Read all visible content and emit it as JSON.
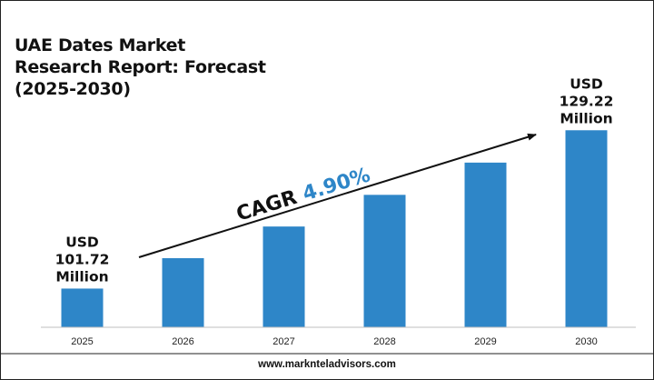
{
  "title": "UAE Dates Market Research Report: Forecast (2025-2030)",
  "footer": {
    "website": "www.marknteladvisors.com"
  },
  "colors": {
    "bar": "#2e86c8",
    "cagr_value": "#2e86c8",
    "text": "#111111"
  },
  "cagr": {
    "label": "CAGR",
    "value": "4.90%"
  },
  "chart_data": {
    "type": "bar",
    "categories": [
      "2025",
      "2026",
      "2027",
      "2028",
      "2029",
      "2030"
    ],
    "values": [
      101.72,
      107.0,
      112.5,
      118.0,
      123.6,
      129.22
    ],
    "ylim": [
      95,
      131
    ],
    "grid": false,
    "data_labels": [
      {
        "category": "2025",
        "lines": [
          "USD",
          "101.72",
          "Million"
        ]
      },
      {
        "category": "2030",
        "lines": [
          "USD",
          "129.22",
          "Million"
        ]
      }
    ]
  }
}
